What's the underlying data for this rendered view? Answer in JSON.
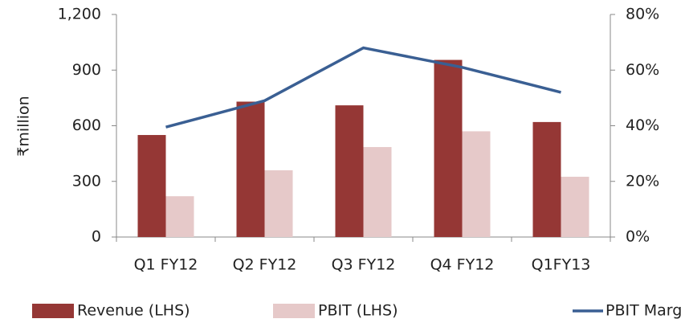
{
  "chart_data": {
    "type": "bar_line",
    "y_label": "₹million",
    "categories": [
      "Q1 FY12",
      "Q2 FY12",
      "Q3 FY12",
      "Q4 FY12",
      "Q1FY13"
    ],
    "series": [
      {
        "name": "Revenue (LHS)",
        "color": "#953735",
        "type": "bar",
        "axis": "y",
        "values": [
          550,
          730,
          710,
          955,
          620
        ]
      },
      {
        "name": "PBIT (LHS)",
        "color": "#e6c9c9",
        "type": "bar",
        "axis": "y",
        "values": [
          220,
          360,
          485,
          570,
          325
        ]
      },
      {
        "name": "PBIT Margin (RHS)",
        "color": "#3a5f93",
        "type": "line",
        "axis": "y2",
        "values": [
          39.5,
          49,
          68,
          61,
          52
        ]
      }
    ],
    "ylim": [
      0,
      1200
    ],
    "yticks": [
      0,
      300,
      600,
      900,
      {
        "value": 1200,
        "label": "1,200"
      }
    ],
    "y2lim": [
      0,
      80
    ],
    "y2ticks": [
      {
        "value": 0,
        "label": "0%"
      },
      {
        "value": 20,
        "label": "20%"
      },
      {
        "value": 40,
        "label": "40%"
      },
      {
        "value": 60,
        "label": "60%"
      },
      {
        "value": 80,
        "label": "80%"
      }
    ],
    "grid": false,
    "legend": "bottom"
  }
}
